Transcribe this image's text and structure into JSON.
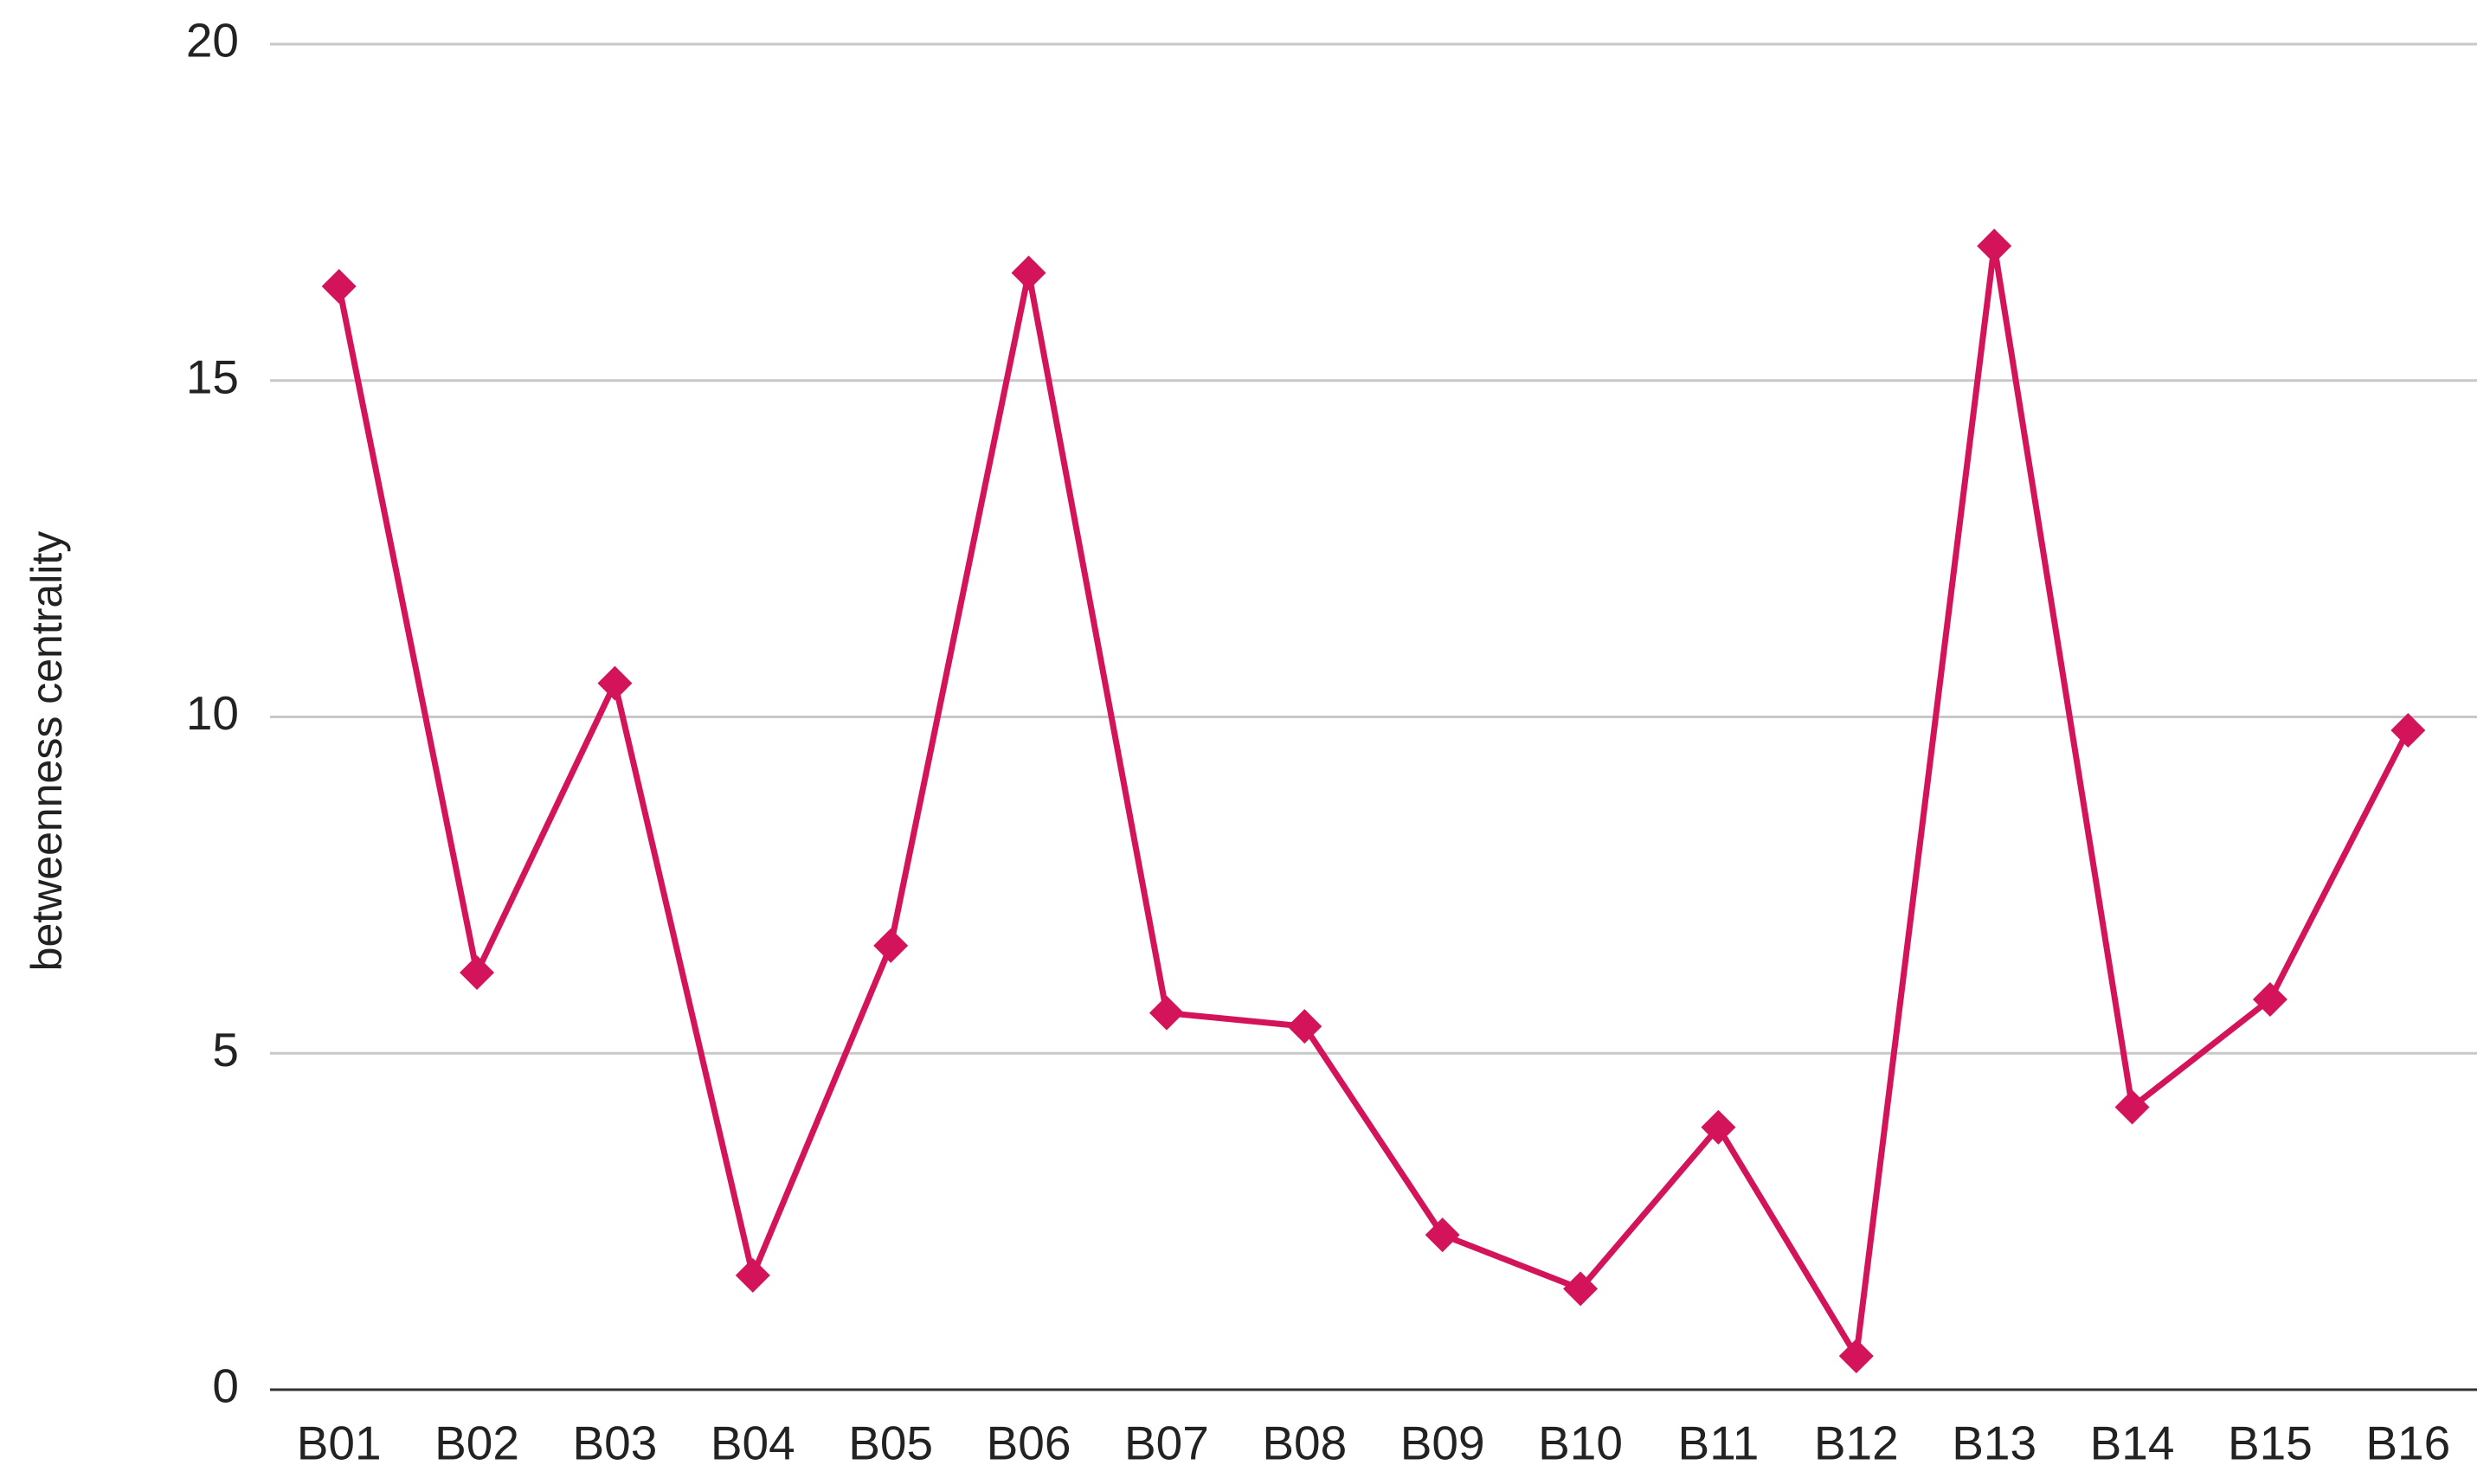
{
  "chart_data": {
    "type": "line",
    "y_label": "betweenness centrality",
    "categories": [
      "B01",
      "B02",
      "B03",
      "B04",
      "B05",
      "B06",
      "B07",
      "B08",
      "B09",
      "B10",
      "B11",
      "B12",
      "B13",
      "B14",
      "B15",
      "B16"
    ],
    "series": [
      {
        "name": "betweenness centrality",
        "color": "#d4145a",
        "values": [
          16.4,
          6.2,
          10.5,
          1.7,
          6.6,
          16.6,
          5.6,
          5.4,
          2.3,
          1.5,
          3.9,
          0.5,
          17.0,
          4.2,
          5.8,
          9.8
        ]
      }
    ],
    "ylim": [
      0,
      20
    ],
    "yticks": [
      0,
      5,
      10,
      15,
      20
    ],
    "grid": true,
    "marker": "diamond"
  }
}
